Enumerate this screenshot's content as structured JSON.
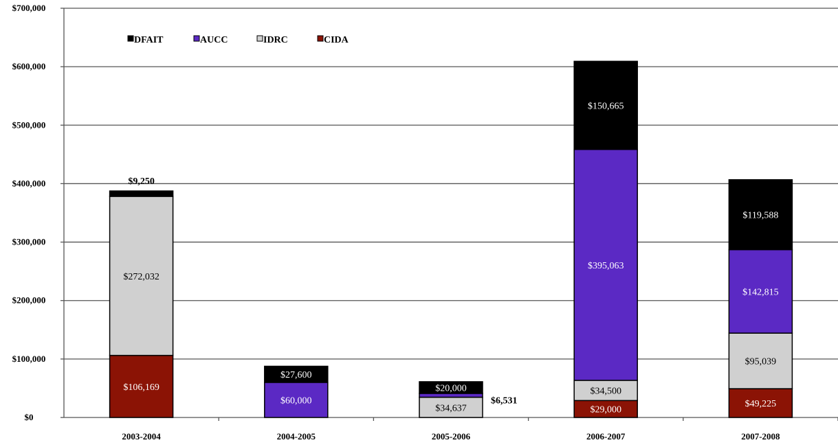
{
  "chart_data": {
    "type": "bar",
    "stacked": true,
    "categories": [
      "2003-2004",
      "2004-2005",
      "2005-2006",
      "2006-2007",
      "2007-2008"
    ],
    "series": [
      {
        "name": "CIDA",
        "color": "#8b1305",
        "values": [
          106169,
          0,
          0,
          29000,
          49225
        ],
        "labels": [
          "$106,169",
          "",
          "",
          "$29,000",
          "$49,225"
        ]
      },
      {
        "name": "IDRC",
        "color": "#d0d0d0",
        "values": [
          272032,
          0,
          34637,
          34500,
          95039
        ],
        "labels": [
          "$272,032",
          "",
          "$34,637",
          "$34,500",
          "$95,039"
        ]
      },
      {
        "name": "AUCC",
        "color": "#5b29c4",
        "values": [
          0,
          60000,
          6531,
          395063,
          142815
        ],
        "labels": [
          "",
          "$60,000",
          "$6,531",
          "$395,063",
          "$142,815"
        ]
      },
      {
        "name": "DFAIT",
        "color": "#000000",
        "values": [
          9250,
          27600,
          20000,
          150665,
          119588
        ],
        "labels": [
          "$9,250",
          "$27,600",
          "$20,000",
          "$150,665",
          "$119,588"
        ]
      }
    ],
    "legend_order": [
      "DFAIT",
      "AUCC",
      "IDRC",
      "CIDA"
    ],
    "legend_position": "top-left",
    "y_ticks": [
      "$0",
      "$100,000",
      "$200,000",
      "$300,000",
      "$400,000",
      "$500,000",
      "$600,000",
      "$700,000"
    ],
    "ylim": [
      0,
      700000
    ],
    "grid": true,
    "title": "",
    "xlabel": "",
    "ylabel": ""
  }
}
